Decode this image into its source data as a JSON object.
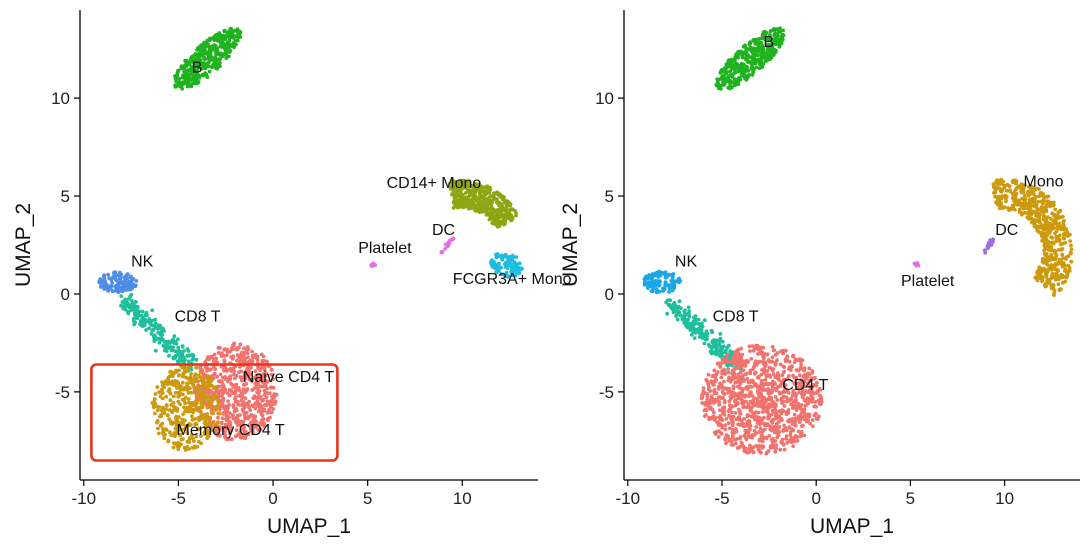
{
  "chart_data": [
    {
      "type": "scatter",
      "xlabel": "UMAP_1",
      "ylabel": "UMAP_2",
      "xlim": [
        -10.2,
        14
      ],
      "ylim": [
        -9.5,
        14.5
      ],
      "xticks": [
        -10,
        -5,
        0,
        5,
        10
      ],
      "yticks": [
        -5,
        0,
        5,
        10
      ],
      "grid": false,
      "annotations": [
        {
          "name": "highlight-box",
          "color": "#e8341c",
          "x_range": [
            -9.6,
            3.4
          ],
          "y_range": [
            -8.5,
            -3.6
          ]
        }
      ],
      "clusters": [
        {
          "label": "B",
          "color": "#1fb31f",
          "n": 360,
          "shape": "ellipse",
          "cx": -3.5,
          "cy": 12.0,
          "rx": 2.3,
          "ry": 0.75,
          "angle": 40,
          "label_x": -4.3,
          "label_y": 11.3
        },
        {
          "label": "CD14+ Mono",
          "color": "#8fa614",
          "n": 420,
          "shape": "arc",
          "cx": 9.9,
          "cy": 2.2,
          "r": 2.9,
          "width": 0.7,
          "a0": 100,
          "a1": 30,
          "label_x": 6.0,
          "label_y": 5.4
        },
        {
          "label": "FCGR3A+ Mono",
          "color": "#1ebde0",
          "n": 90,
          "shape": "ellipse",
          "cx": 12.3,
          "cy": 1.5,
          "rx": 0.6,
          "ry": 0.9,
          "angle": 70,
          "label_x": 9.5,
          "label_y": 0.5
        },
        {
          "label": "DC",
          "color": "#e46ee8",
          "n": 20,
          "shape": "line",
          "x0": 8.9,
          "y0": 2.1,
          "x1": 9.5,
          "y1": 2.9,
          "label_x": 8.4,
          "label_y": 3.0
        },
        {
          "label": "Platelet",
          "color": "#e46ee8",
          "n": 8,
          "shape": "ellipse",
          "cx": 5.3,
          "cy": 1.5,
          "rx": 0.15,
          "ry": 0.1,
          "angle": 0,
          "label_x": 4.5,
          "label_y": 2.1
        },
        {
          "label": "NK",
          "color": "#4d8de8",
          "n": 110,
          "shape": "ellipse",
          "cx": -8.2,
          "cy": 0.6,
          "rx": 1.0,
          "ry": 0.55,
          "angle": 0,
          "label_x": -7.5,
          "label_y": 1.4
        },
        {
          "label": "CD8 T",
          "color": "#1fbf9c",
          "n": 200,
          "shape": "line",
          "x0": -7.8,
          "y0": -0.4,
          "x1": -4.3,
          "y1": -3.6,
          "spread": 0.45,
          "label_x": -5.2,
          "label_y": -1.4
        },
        {
          "label": "Naive CD4 T",
          "color": "#f2736e",
          "n": 650,
          "shape": "ellipse",
          "cx": -2.0,
          "cy": -5.0,
          "rx": 2.2,
          "ry": 2.5,
          "angle": 0,
          "label_x": -1.6,
          "label_y": -4.5
        },
        {
          "label": "Memory CD4 T",
          "color": "#cc9a0c",
          "n": 380,
          "shape": "ellipse",
          "cx": -4.6,
          "cy": -5.8,
          "rx": 1.8,
          "ry": 2.2,
          "angle": 0,
          "label_x": -5.1,
          "label_y": -7.2
        }
      ]
    },
    {
      "type": "scatter",
      "xlabel": "UMAP_1",
      "ylabel": "UMAP_2",
      "xlim": [
        -10.2,
        14
      ],
      "ylim": [
        -9.5,
        14.5
      ],
      "xticks": [
        -10,
        -5,
        0,
        5,
        10
      ],
      "yticks": [
        -5,
        0,
        5,
        10
      ],
      "grid": false,
      "clusters": [
        {
          "label": "B",
          "color": "#1fb31f",
          "n": 360,
          "shape": "ellipse",
          "cx": -3.5,
          "cy": 12.0,
          "rx": 2.3,
          "ry": 0.75,
          "angle": 40,
          "label_x": -2.8,
          "label_y": 12.6
        },
        {
          "label": "Mono",
          "color": "#cc9a0c",
          "n": 560,
          "shape": "arc",
          "cx": 9.9,
          "cy": 2.2,
          "r": 2.9,
          "width": 0.8,
          "a0": 100,
          "a1": -40,
          "label_x": 11.0,
          "label_y": 5.5
        },
        {
          "label": "DC",
          "color": "#9b6be8",
          "n": 20,
          "shape": "line",
          "x0": 8.9,
          "y0": 2.1,
          "x1": 9.5,
          "y1": 2.9,
          "label_x": 9.5,
          "label_y": 3.0
        },
        {
          "label": "Platelet",
          "color": "#e46ee8",
          "n": 8,
          "shape": "ellipse",
          "cx": 5.3,
          "cy": 1.5,
          "rx": 0.15,
          "ry": 0.1,
          "angle": 0,
          "label_x": 4.5,
          "label_y": 0.4
        },
        {
          "label": "NK",
          "color": "#1aa6e8",
          "n": 110,
          "shape": "ellipse",
          "cx": -8.2,
          "cy": 0.6,
          "rx": 1.0,
          "ry": 0.55,
          "angle": 0,
          "label_x": -7.5,
          "label_y": 1.4
        },
        {
          "label": "CD8 T",
          "color": "#1fbf9c",
          "n": 200,
          "shape": "line",
          "x0": -7.8,
          "y0": -0.4,
          "x1": -4.3,
          "y1": -3.6,
          "spread": 0.45,
          "label_x": -5.5,
          "label_y": -1.4
        },
        {
          "label": "CD4 T",
          "color": "#f2736e",
          "n": 1000,
          "shape": "ellipse",
          "cx": -2.9,
          "cy": -5.4,
          "rx": 3.2,
          "ry": 2.8,
          "angle": 0,
          "label_x": -1.8,
          "label_y": -4.9
        }
      ]
    }
  ]
}
